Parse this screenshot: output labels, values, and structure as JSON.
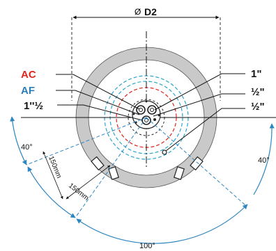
{
  "diameter_symbol": "Ø",
  "diameter_label": "D2",
  "labels_left": {
    "ac": "AC",
    "af": "AF",
    "inch_113": "1''½"
  },
  "labels_right": {
    "one_inch": "1\"",
    "half_inch_1": "½\"",
    "half_inch_2": "½\""
  },
  "angles": {
    "left": "40°",
    "right": "40°",
    "bottom": "100°"
  },
  "distances": {
    "d1": "150mm",
    "d2": "150mm"
  },
  "colors": {
    "ac": "#e1261c",
    "af": "#2a7fb8",
    "arc_blue": "#2e86c1",
    "ring_grey": "#c8c8c8",
    "ink": "#111111"
  }
}
